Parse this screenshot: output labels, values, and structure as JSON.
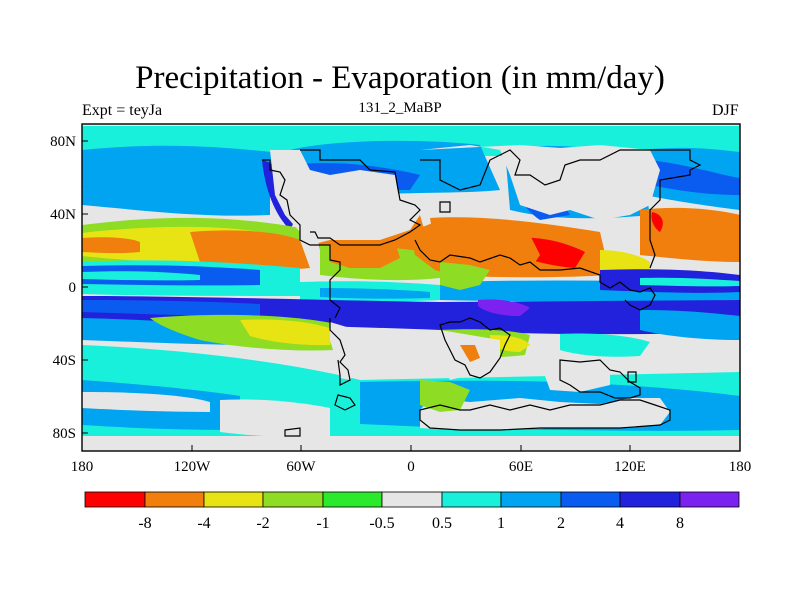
{
  "title": "Precipitation - Evaporation (in mm/day)",
  "left_label": "Expt = teyJa",
  "center_label": "131_2_MaBP",
  "right_label": "DJF",
  "map": {
    "lat_ticks": [
      "80N",
      "40N",
      "0",
      "40S",
      "80S"
    ],
    "lon_ticks": [
      "180",
      "120W",
      "60W",
      "0",
      "60E",
      "120E",
      "180"
    ]
  },
  "colorbar": {
    "colors": [
      "#ff0000",
      "#f07f0d",
      "#e8e414",
      "#8fdc24",
      "#2bea2b",
      "#e6e6e6",
      "#19f0dc",
      "#00a4f0",
      "#0a5cf0",
      "#2222dc",
      "#7c22f0"
    ],
    "labels": [
      "-8",
      "-4",
      "-2",
      "-1",
      "-0.5",
      "0.5",
      "1",
      "2",
      "4",
      "8"
    ]
  },
  "legend": {
    "c0": "#ff0000",
    "c1": "#f07f0d",
    "c2": "#e8e414",
    "c3": "#8fdc24",
    "c4": "#2bea2b",
    "c5": "#e6e6e6",
    "c6": "#19f0dc",
    "c7": "#00a4f0",
    "c8": "#0a5cf0",
    "c9": "#2222dc",
    "c10": "#7c22f0"
  }
}
